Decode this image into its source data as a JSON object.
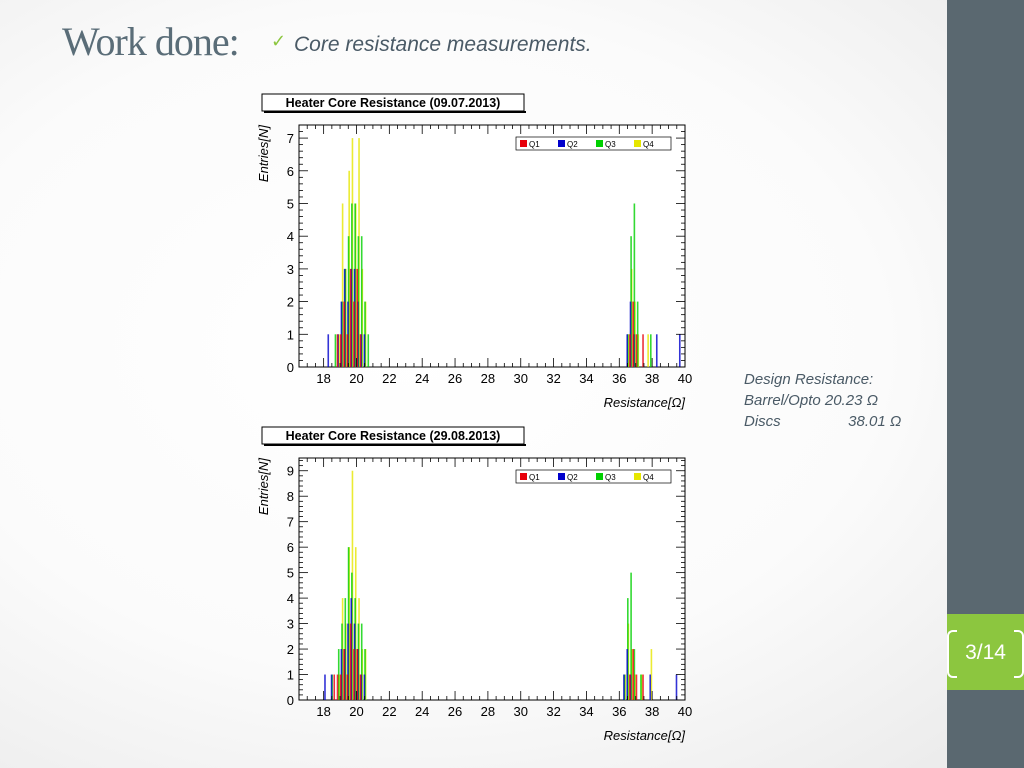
{
  "slide": {
    "title": "Work done:",
    "subtitle": "Core resistance measurements.",
    "page": "3/14"
  },
  "notes": {
    "heading": "Design Resistance:",
    "rows": [
      {
        "label": "Barrel/Opto",
        "value": "20.23 Ω"
      },
      {
        "label": "Discs",
        "value": "38.01 Ω"
      }
    ]
  },
  "colors": {
    "sidebar": "#5a6870",
    "badge": "#8cc63f",
    "Q1": "#e8000b",
    "Q2": "#0000cc",
    "Q3": "#00d000",
    "Q4": "#e6e600"
  },
  "chart_data": [
    {
      "type": "bar",
      "title": "Heater Core Resistance (09.07.2013)",
      "xlabel": "Resistance[Ω]",
      "ylabel": "Entries[N]",
      "xlim": [
        16.5,
        40
      ],
      "ylim": [
        0,
        7.4
      ],
      "xticks": [
        18,
        20,
        22,
        24,
        26,
        28,
        30,
        32,
        34,
        36,
        38,
        40
      ],
      "yticks": [
        0,
        1,
        2,
        3,
        4,
        5,
        6,
        7
      ],
      "legend": "top-right",
      "series": [
        {
          "name": "Q1",
          "x": [
            18.9,
            19.1,
            19.3,
            19.5,
            19.7,
            19.9,
            20.1,
            20.3,
            36.7,
            36.9,
            37.1,
            37.5
          ],
          "values": [
            1,
            1,
            2,
            1,
            3,
            2,
            3,
            1,
            1,
            2,
            1,
            1
          ]
        },
        {
          "name": "Q2",
          "x": [
            18.3,
            18.9,
            19.1,
            19.3,
            19.5,
            19.7,
            19.9,
            20.1,
            20.3,
            20.5,
            36.5,
            36.7,
            36.9,
            38.3,
            39.7
          ],
          "values": [
            1,
            1,
            2,
            3,
            2,
            3,
            3,
            2,
            1,
            1,
            1,
            2,
            1,
            1,
            1
          ]
        },
        {
          "name": "Q3",
          "x": [
            18.7,
            19.1,
            19.3,
            19.5,
            19.7,
            19.9,
            20.1,
            20.3,
            20.5,
            20.7,
            36.5,
            36.7,
            36.9,
            37.1,
            37.9
          ],
          "values": [
            1,
            2,
            3,
            4,
            5,
            5,
            4,
            4,
            2,
            1,
            1,
            4,
            5,
            2,
            1
          ]
        },
        {
          "name": "Q4",
          "x": [
            18.9,
            19.1,
            19.3,
            19.5,
            19.7,
            19.9,
            20.1,
            20.3,
            20.5,
            36.5,
            36.7,
            36.9,
            37.1,
            37.7
          ],
          "values": [
            1,
            5,
            3,
            6,
            7,
            5,
            7,
            3,
            2,
            1,
            3,
            2,
            1,
            1
          ]
        }
      ]
    },
    {
      "type": "bar",
      "title": "Heater Core Resistance (29.08.2013)",
      "xlabel": "Resistance[Ω]",
      "ylabel": "Entries[N]",
      "xlim": [
        16.5,
        40
      ],
      "ylim": [
        0,
        9.5
      ],
      "xticks": [
        18,
        20,
        22,
        24,
        26,
        28,
        30,
        32,
        34,
        36,
        38,
        40
      ],
      "yticks": [
        0,
        1,
        2,
        3,
        4,
        5,
        6,
        7,
        8,
        9
      ],
      "legend": "top-right",
      "series": [
        {
          "name": "Q1",
          "x": [
            18.7,
            18.9,
            19.1,
            19.3,
            19.5,
            19.7,
            19.9,
            20.1,
            20.3,
            36.7,
            36.9,
            37.1,
            37.5
          ],
          "values": [
            1,
            1,
            1,
            2,
            1,
            3,
            2,
            2,
            1,
            1,
            2,
            1,
            1
          ]
        },
        {
          "name": "Q2",
          "x": [
            18.1,
            18.5,
            19.1,
            19.3,
            19.5,
            19.7,
            19.9,
            20.1,
            20.3,
            20.5,
            36.3,
            36.5,
            36.7,
            37.9,
            39.5
          ],
          "values": [
            1,
            1,
            2,
            2,
            3,
            4,
            3,
            2,
            1,
            1,
            1,
            2,
            1,
            1,
            1
          ]
        },
        {
          "name": "Q3",
          "x": [
            18.5,
            18.9,
            19.1,
            19.3,
            19.5,
            19.7,
            19.9,
            20.1,
            20.3,
            20.5,
            36.3,
            36.5,
            36.7,
            36.9,
            37.3
          ],
          "values": [
            1,
            2,
            3,
            4,
            6,
            5,
            4,
            3,
            3,
            2,
            1,
            4,
            5,
            2,
            1
          ]
        },
        {
          "name": "Q4",
          "x": [
            18.9,
            19.1,
            19.3,
            19.5,
            19.7,
            19.9,
            20.1,
            20.3,
            20.5,
            36.3,
            36.5,
            36.7,
            36.9,
            37.3,
            37.9
          ],
          "values": [
            1,
            4,
            3,
            6,
            9,
            6,
            4,
            2,
            2,
            1,
            3,
            2,
            1,
            1,
            2
          ]
        }
      ]
    }
  ]
}
